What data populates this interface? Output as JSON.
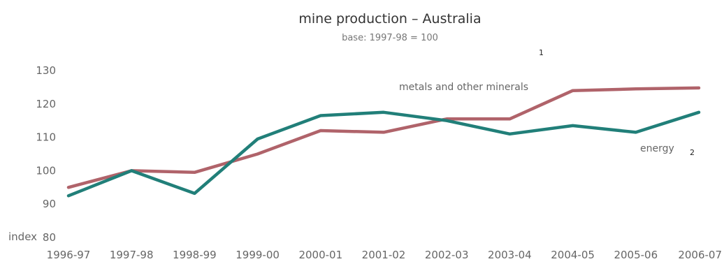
{
  "chart_data": {
    "type": "line",
    "title": "mine production – Australia",
    "subtitle": "base: 1997-98 = 100",
    "ylabel": "index",
    "xlabel": "",
    "categories": [
      "1996-97",
      "1997-98",
      "1998-99",
      "1999-00",
      "2000-01",
      "2001-02",
      "2002-03",
      "2003-04",
      "2004-05",
      "2005-06",
      "2006-07"
    ],
    "yticks": [
      "80",
      "90",
      "100",
      "110",
      "120",
      "130"
    ],
    "ylim": [
      80,
      130
    ],
    "grid": false,
    "series": [
      {
        "name": "metals and other minerals",
        "color": "#b0636a",
        "values": [
          95,
          100,
          99.5,
          105,
          112,
          111.5,
          115.5,
          115.5,
          124,
          124.5,
          124.8
        ]
      },
      {
        "name": "energy",
        "color": "#217f79",
        "values": [
          92.5,
          100,
          93.2,
          109.5,
          116.5,
          117.5,
          115,
          111,
          113.5,
          111.5,
          117.5
        ]
      }
    ],
    "annotations": [
      "1",
      "2"
    ]
  }
}
